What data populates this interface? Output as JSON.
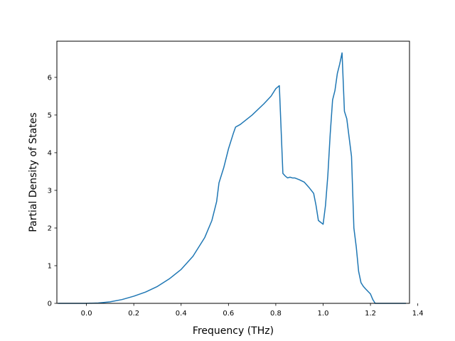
{
  "chart_data": {
    "type": "line",
    "title": "",
    "xlabel": "Frequency (THz)",
    "ylabel": "Partial Density of States",
    "xlim": [
      -0.125,
      1.365
    ],
    "ylim": [
      0,
      6.96
    ],
    "x_ticks": [
      0.0,
      0.2,
      0.4,
      0.6,
      0.8,
      1.0,
      1.2,
      1.4
    ],
    "x_tick_labels": [
      "0.0",
      "0.2",
      "0.4",
      "0.6",
      "0.8",
      "1.0",
      "1.2",
      "1.4"
    ],
    "y_ticks": [
      0,
      1,
      2,
      3,
      4,
      5,
      6
    ],
    "y_tick_labels": [
      "0",
      "1",
      "2",
      "3",
      "4",
      "5",
      "6"
    ],
    "grid": false,
    "legend": "none",
    "colors": {
      "line": "#1f77b4"
    },
    "series": [
      {
        "x": [
          -0.12,
          -0.05,
          0.0,
          0.05,
          0.1,
          0.15,
          0.2,
          0.25,
          0.3,
          0.35,
          0.4,
          0.45,
          0.5,
          0.53,
          0.55,
          0.56,
          0.58,
          0.6,
          0.62,
          0.63,
          0.65,
          0.7,
          0.75,
          0.78,
          0.8,
          0.815,
          0.82,
          0.83,
          0.84,
          0.85,
          0.86,
          0.87,
          0.88,
          0.9,
          0.92,
          0.94,
          0.96,
          0.97,
          0.98,
          0.99,
          1.0,
          1.01,
          1.02,
          1.03,
          1.04,
          1.05,
          1.06,
          1.07,
          1.08,
          1.09,
          1.1,
          1.11,
          1.12,
          1.13,
          1.14,
          1.15,
          1.16,
          1.17,
          1.18,
          1.2,
          1.21,
          1.22,
          1.23,
          1.25,
          1.3,
          1.35
        ],
        "y": [
          0.0,
          0.0,
          0.0,
          0.01,
          0.04,
          0.1,
          0.19,
          0.3,
          0.45,
          0.65,
          0.9,
          1.25,
          1.75,
          2.2,
          2.7,
          3.2,
          3.6,
          4.1,
          4.5,
          4.68,
          4.75,
          5.0,
          5.3,
          5.5,
          5.7,
          5.78,
          5.0,
          3.45,
          3.38,
          3.33,
          3.35,
          3.33,
          3.33,
          3.28,
          3.22,
          3.08,
          2.92,
          2.6,
          2.2,
          2.15,
          2.1,
          2.6,
          3.4,
          4.5,
          5.4,
          5.65,
          6.1,
          6.35,
          6.65,
          5.1,
          4.9,
          4.4,
          3.9,
          2.0,
          1.5,
          0.85,
          0.55,
          0.45,
          0.38,
          0.25,
          0.1,
          0.0,
          0.0,
          0.0,
          0.0,
          0.0
        ]
      }
    ]
  }
}
